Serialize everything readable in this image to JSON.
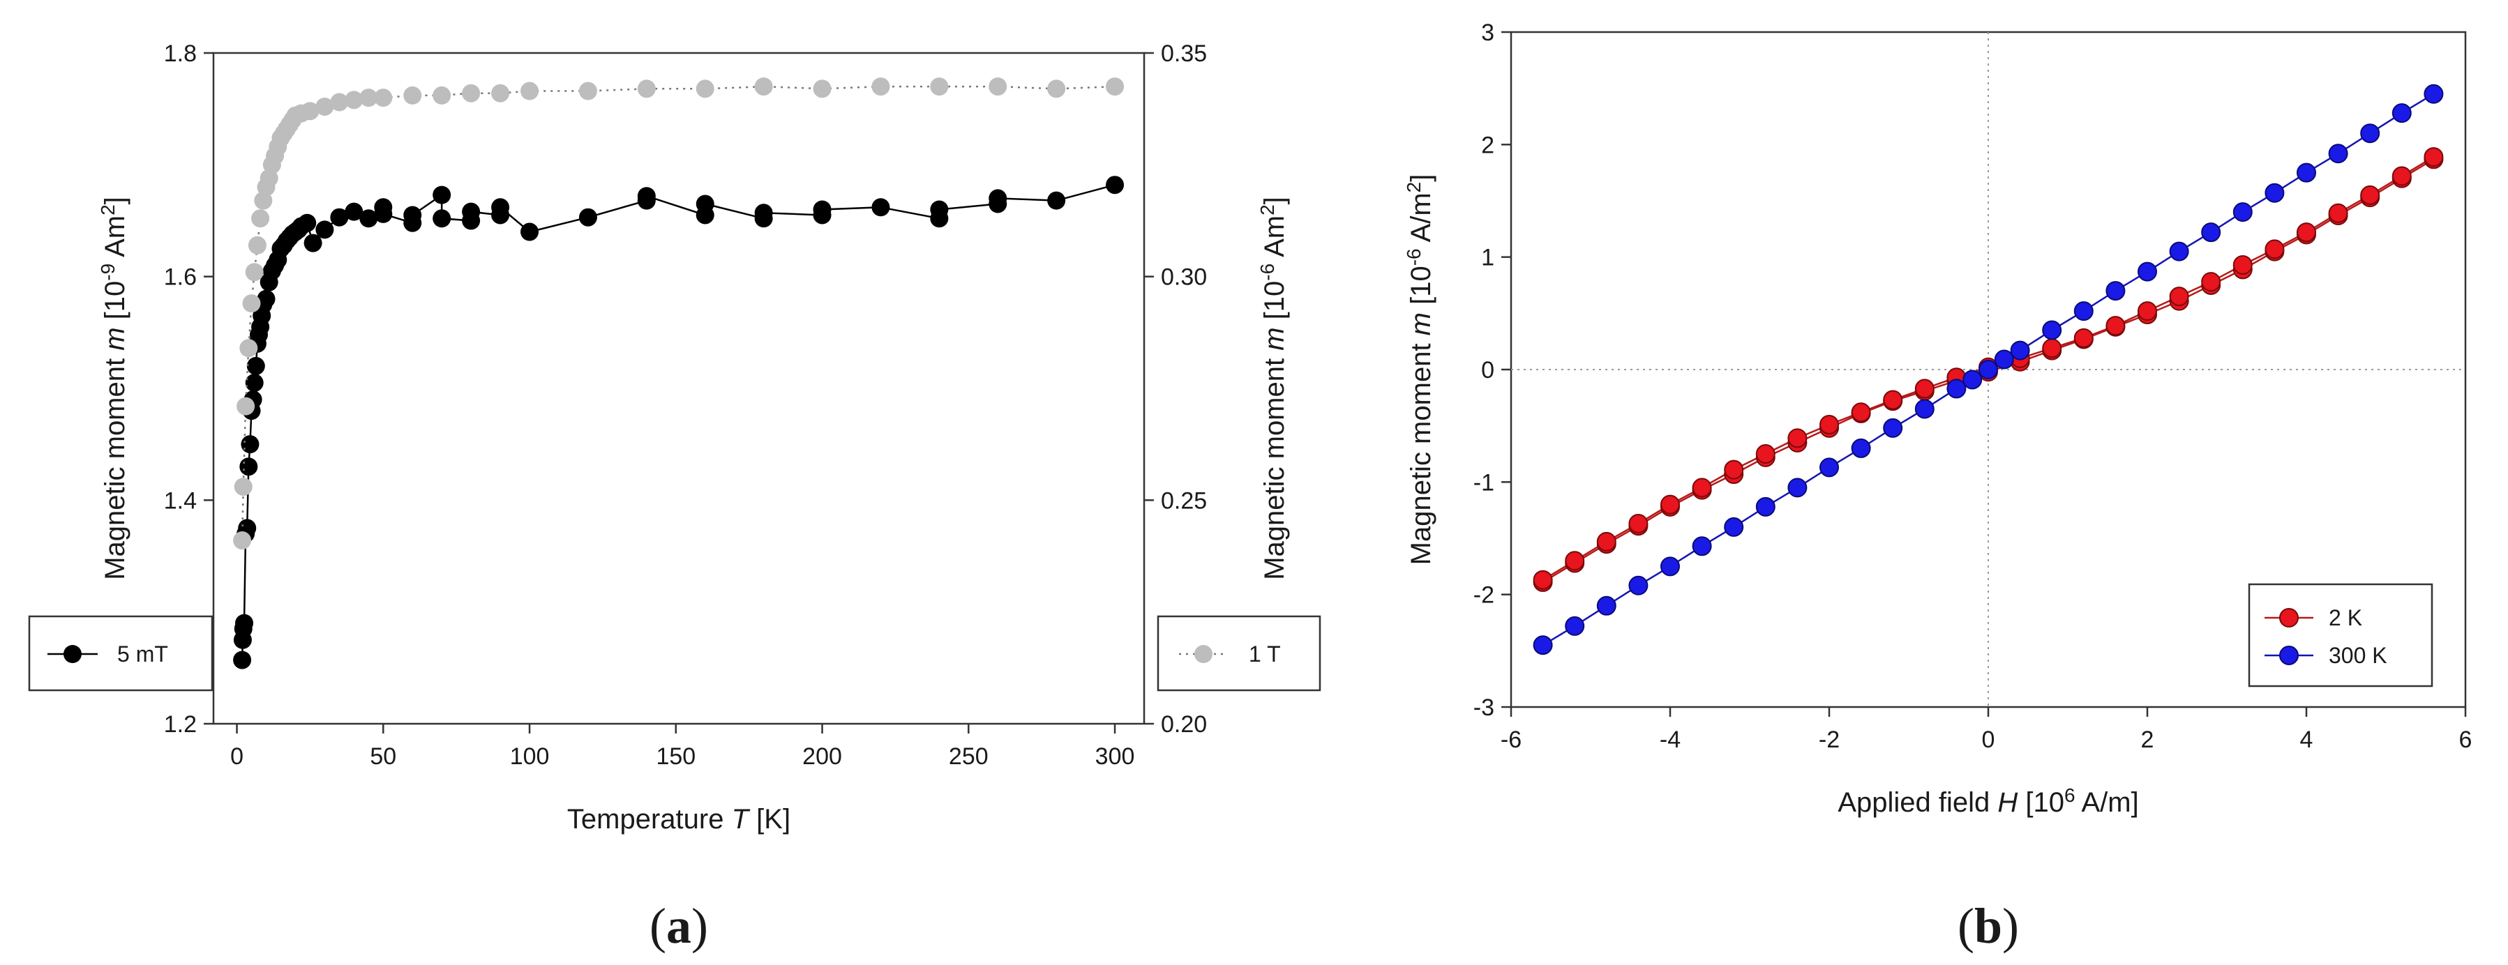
{
  "chart_data": [
    {
      "id": "a",
      "type": "scatter",
      "panel_label": "(a)",
      "panel_label_bold": "a",
      "xlabel": {
        "prefix": "Temperature ",
        "italic": "T",
        "suffix": " [K]"
      },
      "ylabel_left": {
        "prefix": "Magnetic moment ",
        "italic": "m",
        "suffix": " [10",
        "sup": "-9",
        "tail": " Am",
        "sup2": "2",
        "end": "]"
      },
      "ylabel_right": {
        "prefix": "Magnetic moment ",
        "italic": "m",
        "suffix": " [10",
        "sup": "-6",
        "tail": " Am",
        "sup2": "2",
        "end": "]"
      },
      "xlim": [
        -8,
        310
      ],
      "ylim_left": [
        1.2,
        1.8
      ],
      "ylim_right": [
        0.2,
        0.35
      ],
      "xticks": [
        "0",
        "50",
        "100",
        "150",
        "200",
        "250",
        "300"
      ],
      "xtick_values": [
        0,
        50,
        100,
        150,
        200,
        250,
        300
      ],
      "yticks_left": [
        "1.2",
        "1.4",
        "1.6",
        "1.8"
      ],
      "ytick_values_left": [
        1.2,
        1.4,
        1.6,
        1.8
      ],
      "yticks_right": [
        "0.20",
        "0.25",
        "0.30",
        "0.35"
      ],
      "ytick_values_right": [
        0.2,
        0.25,
        0.3,
        0.35
      ],
      "grid": false,
      "series": [
        {
          "name": "5 mT",
          "axis": "left",
          "color": "#000000",
          "line_style": "solid",
          "legend_position": "bottom-left",
          "x": [
            1.8,
            2,
            2.2,
            2.5,
            3,
            3.5,
            4,
            4.5,
            5,
            5.5,
            6,
            6.5,
            7,
            7.5,
            8,
            8.5,
            9,
            10,
            11,
            12,
            13,
            14,
            15,
            16,
            17,
            18,
            19,
            20,
            21,
            22,
            24,
            26,
            30,
            35,
            40,
            45,
            50,
            50,
            60,
            60,
            70,
            70,
            80,
            80,
            90,
            90,
            100,
            120,
            140,
            140,
            160,
            160,
            180,
            180,
            200,
            200,
            220,
            240,
            240,
            260,
            260,
            280,
            300
          ],
          "y": [
            1.257,
            1.275,
            1.285,
            1.29,
            1.37,
            1.375,
            1.43,
            1.45,
            1.48,
            1.49,
            1.505,
            1.52,
            1.54,
            1.548,
            1.555,
            1.565,
            1.575,
            1.58,
            1.595,
            1.605,
            1.61,
            1.615,
            1.625,
            1.628,
            1.632,
            1.635,
            1.638,
            1.64,
            1.642,
            1.645,
            1.648,
            1.63,
            1.642,
            1.653,
            1.658,
            1.652,
            1.662,
            1.656,
            1.648,
            1.655,
            1.673,
            1.652,
            1.65,
            1.658,
            1.655,
            1.662,
            1.64,
            1.653,
            1.668,
            1.672,
            1.655,
            1.665,
            1.652,
            1.657,
            1.655,
            1.66,
            1.662,
            1.652,
            1.66,
            1.665,
            1.67,
            1.668,
            1.682
          ]
        },
        {
          "name": "1 T",
          "axis": "right",
          "color": "#bdbdbd",
          "line_style": "dotted",
          "legend_position": "bottom-right",
          "x": [
            1.8,
            2.2,
            3,
            4,
            5,
            6,
            7,
            8,
            9,
            10,
            11,
            12,
            13,
            14,
            15,
            16,
            17,
            18,
            19,
            20,
            22,
            25,
            30,
            35,
            40,
            45,
            50,
            60,
            70,
            80,
            90,
            100,
            120,
            140,
            160,
            180,
            200,
            220,
            240,
            260,
            280,
            300
          ],
          "y": [
            0.241,
            0.253,
            0.271,
            0.284,
            0.294,
            0.301,
            0.307,
            0.313,
            0.317,
            0.32,
            0.322,
            0.325,
            0.327,
            0.329,
            0.331,
            0.332,
            0.333,
            0.334,
            0.335,
            0.336,
            0.3365,
            0.337,
            0.338,
            0.339,
            0.3395,
            0.34,
            0.34,
            0.3405,
            0.3405,
            0.341,
            0.341,
            0.3415,
            0.3415,
            0.342,
            0.342,
            0.3425,
            0.342,
            0.3425,
            0.3425,
            0.3425,
            0.342,
            0.3425
          ]
        }
      ]
    },
    {
      "id": "b",
      "type": "line",
      "panel_label": "(b)",
      "panel_label_bold": "b",
      "xlabel": {
        "prefix": "Applied field ",
        "italic": "H",
        "suffix": " [10",
        "sup": "6",
        "tail": " A/m]"
      },
      "ylabel": {
        "prefix": "Magnetic moment ",
        "italic": "m",
        "suffix": " [10",
        "sup": "-6",
        "tail": " A/m",
        "sup2": "2",
        "end": "]"
      },
      "xlim": [
        -6,
        6
      ],
      "ylim": [
        -3,
        3
      ],
      "xticks": [
        "-6",
        "-4",
        "-2",
        "0",
        "2",
        "4",
        "6"
      ],
      "xtick_values": [
        -6,
        -4,
        -2,
        0,
        2,
        4,
        6
      ],
      "yticks": [
        "-3",
        "-2",
        "-1",
        "0",
        "1",
        "2",
        "3"
      ],
      "ytick_values": [
        -3,
        -2,
        -1,
        0,
        1,
        2,
        3
      ],
      "grid": false,
      "zero_reference_lines": true,
      "legend_position": "lower-right",
      "series": [
        {
          "name": "2 K",
          "color": "#e8141e",
          "edge_color": "#7a0a0a",
          "line_color": "#b81818",
          "x": [
            -5.6,
            -5.2,
            -4.8,
            -4.4,
            -4.0,
            -3.6,
            -3.2,
            -2.8,
            -2.4,
            -2.0,
            -1.6,
            -1.2,
            -0.8,
            -0.4,
            0.0,
            0.4,
            0.8,
            1.2,
            1.6,
            2.0,
            2.4,
            2.8,
            3.2,
            3.6,
            4.0,
            4.4,
            4.8,
            5.2,
            5.6
          ],
          "y_branch_1": [
            -1.89,
            -1.72,
            -1.55,
            -1.39,
            -1.22,
            -1.07,
            -0.93,
            -0.78,
            -0.65,
            -0.52,
            -0.39,
            -0.28,
            -0.19,
            -0.1,
            -0.02,
            0.07,
            0.17,
            0.27,
            0.38,
            0.49,
            0.61,
            0.75,
            0.89,
            1.05,
            1.2,
            1.37,
            1.53,
            1.7,
            1.87
          ],
          "y_branch_2": [
            -1.87,
            -1.7,
            -1.53,
            -1.37,
            -1.2,
            -1.05,
            -0.89,
            -0.75,
            -0.61,
            -0.49,
            -0.38,
            -0.27,
            -0.17,
            -0.07,
            0.02,
            0.1,
            0.19,
            0.28,
            0.39,
            0.52,
            0.65,
            0.78,
            0.93,
            1.07,
            1.22,
            1.39,
            1.55,
            1.72,
            1.89
          ]
        },
        {
          "name": "300 K",
          "color": "#1a1ae6",
          "edge_color": "#0a0a7a",
          "line_color": "#1414b4",
          "x": [
            -5.6,
            -5.2,
            -4.8,
            -4.4,
            -4.0,
            -3.6,
            -3.2,
            -2.8,
            -2.4,
            -2.0,
            -1.6,
            -1.2,
            -0.8,
            -0.4,
            -0.2,
            0.0,
            0.2,
            0.4,
            0.8,
            1.2,
            1.6,
            2.0,
            2.4,
            2.8,
            3.2,
            3.6,
            4.0,
            4.4,
            4.8,
            5.2,
            5.6
          ],
          "y": [
            -2.45,
            -2.28,
            -2.1,
            -1.92,
            -1.75,
            -1.57,
            -1.4,
            -1.22,
            -1.05,
            -0.87,
            -0.7,
            -0.52,
            -0.35,
            -0.17,
            -0.09,
            0.0,
            0.09,
            0.17,
            0.35,
            0.52,
            0.7,
            0.87,
            1.05,
            1.22,
            1.4,
            1.57,
            1.75,
            1.92,
            2.1,
            2.28,
            2.45
          ]
        }
      ]
    }
  ]
}
